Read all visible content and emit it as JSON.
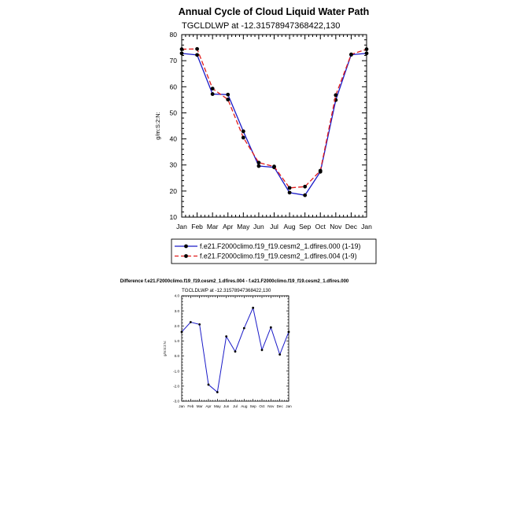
{
  "chart_data": [
    {
      "type": "line",
      "title": "Annual Cycle of Cloud Liquid Water Path",
      "subtitle": "TGCLDLWP at -12.31578947368422,130",
      "ylabel": "g/m:S:2:N:",
      "xlabel": "",
      "ylim": [
        10,
        80
      ],
      "yticks": [
        "10",
        "20",
        "30",
        "40",
        "50",
        "60",
        "70",
        "80"
      ],
      "categories": [
        "Jan",
        "Feb",
        "Mar",
        "Apr",
        "May",
        "Jun",
        "Jul",
        "Aug",
        "Sep",
        "Oct",
        "Nov",
        "Dec",
        "Jan"
      ],
      "series": [
        {
          "name": "f.e21.F2000climo.f19_f19.cesm2_1.dfires.000 (1-19)",
          "color": "#1a1ac8",
          "dash": "solid",
          "values": [
            72.8,
            72.2,
            57.2,
            57.0,
            42.9,
            29.6,
            29.1,
            19.4,
            18.4,
            27.4,
            54.9,
            72.3,
            72.8
          ]
        },
        {
          "name": "f.e21.F2000climo.f19_f19.cesm2_1.dfires.004 (1-9)",
          "color": "#e01c1c",
          "dash": "dashed",
          "values": [
            74.4,
            74.5,
            59.3,
            55.1,
            40.5,
            30.9,
            29.4,
            21.2,
            21.7,
            27.8,
            56.8,
            72.4,
            74.4
          ]
        }
      ],
      "legend": "below"
    },
    {
      "type": "line",
      "title": "Difference f.e21.F2000climo.f19_f19.cesm2_1.dfires.004 - f.e21.F2000climo.f19_f19.cesm2_1.dfires.000",
      "subtitle": "TGCLDLWP at -12.31578947368422,130",
      "ylabel": "g/m:S:2:N:",
      "xlabel": "",
      "ylim": [
        -3,
        4
      ],
      "yticks": [
        "-3.0",
        "-2.0",
        "-1.0",
        "0.0",
        "1.0",
        "2.0",
        "3.0",
        "4.0"
      ],
      "categories": [
        "Jan",
        "Feb",
        "Mar",
        "Apr",
        "May",
        "Jun",
        "Jul",
        "Aug",
        "Sep",
        "Oct",
        "Nov",
        "Dec",
        "Jan"
      ],
      "series": [
        {
          "color": "#1a1ac8",
          "values": [
            1.6,
            2.25,
            2.1,
            -1.9,
            -2.4,
            1.3,
            0.3,
            1.85,
            3.2,
            0.4,
            1.9,
            0.1,
            1.6
          ]
        }
      ]
    }
  ]
}
